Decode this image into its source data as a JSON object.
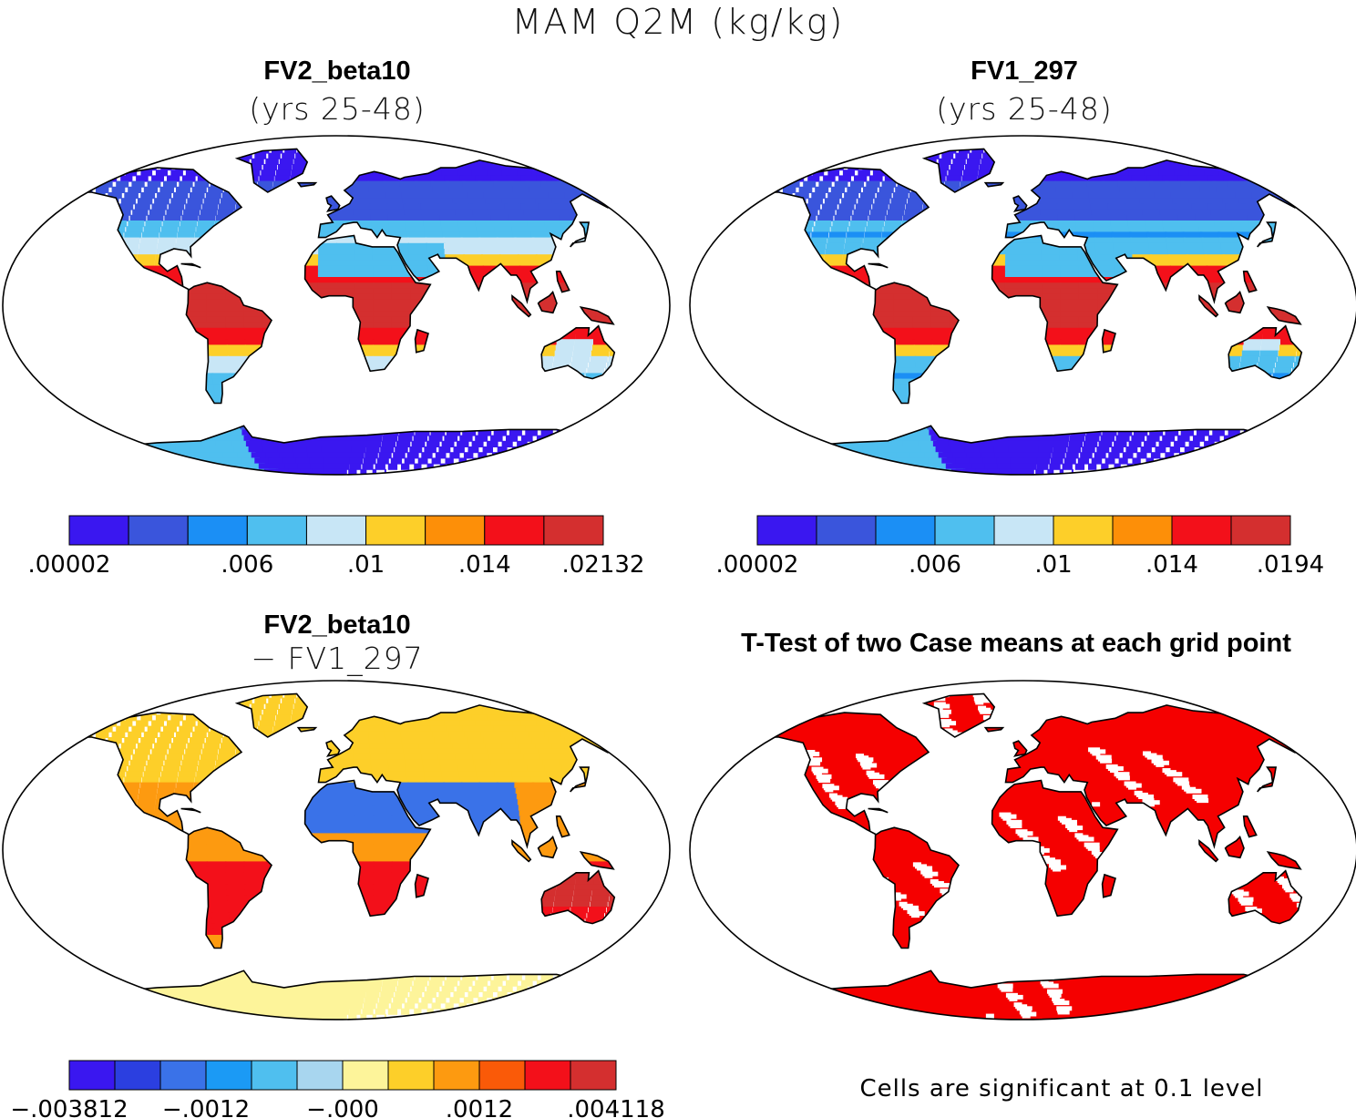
{
  "figure": {
    "main_title": "MAM Q2M (kg/kg)"
  },
  "chart_data": [
    {
      "type": "heatmap",
      "title": "FV2_beta10",
      "subtitle": "(yrs 25-48)",
      "projection": "robinson",
      "colorbar": {
        "colors": [
          "#3a17f0",
          "#3a55dc",
          "#1b8ff5",
          "#4fbfef",
          "#c8e6f6",
          "#fdcf29",
          "#fd8f08",
          "#f3101a",
          "#d42f2f"
        ],
        "tick_labels": [
          ".00002",
          ".006",
          ".01",
          ".014",
          ".02132"
        ],
        "tick_index": [
          0,
          3,
          5,
          7,
          9
        ]
      }
    },
    {
      "type": "heatmap",
      "title": "FV1_297",
      "subtitle": "(yrs 25-48)",
      "projection": "robinson",
      "colorbar": {
        "colors": [
          "#3a17f0",
          "#3a55dc",
          "#1b8ff5",
          "#4fbfef",
          "#c8e6f6",
          "#fdcf29",
          "#fd8f08",
          "#f3101a",
          "#d42f2f"
        ],
        "tick_labels": [
          ".00002",
          ".006",
          ".01",
          ".014",
          ".0194"
        ],
        "tick_index": [
          0,
          3,
          5,
          7,
          9
        ]
      }
    },
    {
      "type": "heatmap",
      "title": "FV2_beta10",
      "subtitle": "− FV1_297",
      "projection": "robinson",
      "colorbar": {
        "colors": [
          "#3a17f0",
          "#2b3fe0",
          "#3a72e8",
          "#1b9af5",
          "#4fbfef",
          "#a8d6ef",
          "#fdf49a",
          "#fdcf29",
          "#fd9a10",
          "#fa5a08",
          "#f3101a",
          "#d42f2f"
        ],
        "tick_labels": [
          "−.003812",
          "−.0012",
          "−.000",
          ".0012",
          ".004118"
        ],
        "tick_index": [
          0,
          3,
          6,
          9,
          12
        ]
      }
    },
    {
      "type": "heatmap",
      "title": "T-Test of two Case means at each grid point",
      "subtitle": "",
      "projection": "robinson",
      "significant_color": "#f50000",
      "footnote": "Cells are significant at 0.1 level"
    }
  ]
}
